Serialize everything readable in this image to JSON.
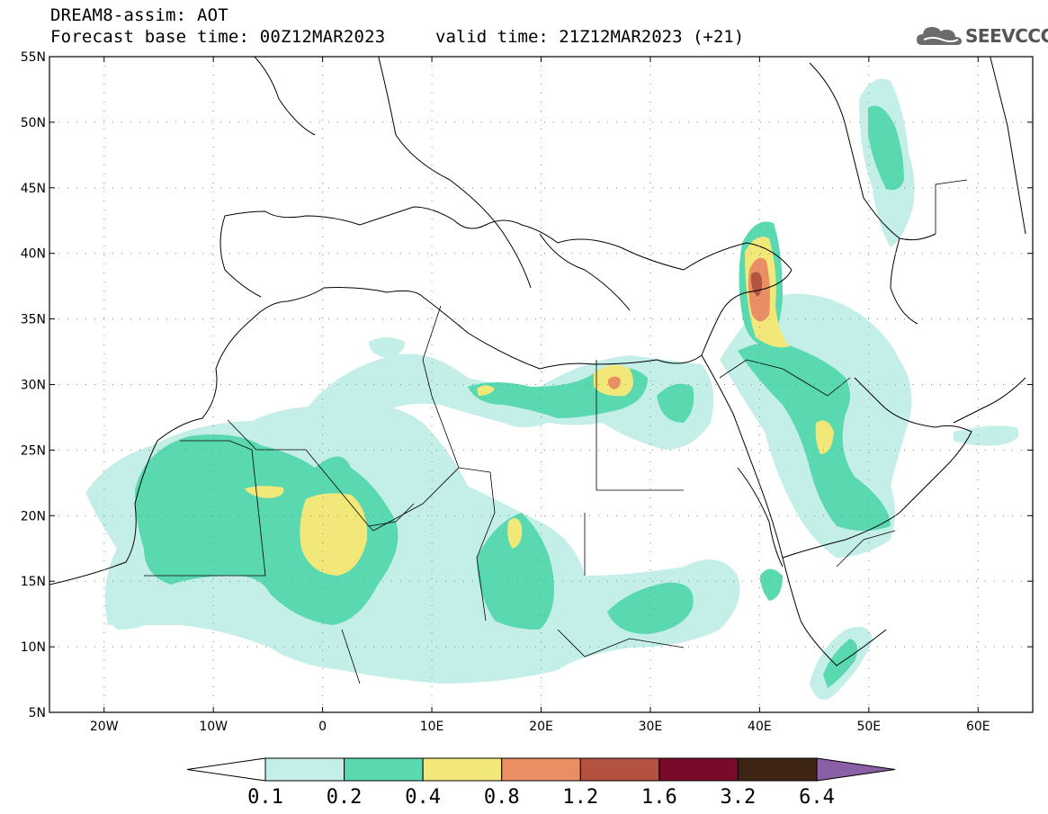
{
  "header": {
    "title": "DREAM8-assim: AOT",
    "base_time": "Forecast base time: 00Z12MAR2023",
    "valid_time": "valid time: 21Z12MAR2023 (+21)"
  },
  "logo": {
    "text": "SEEVCCC",
    "icon": "cloud-logo-icon"
  },
  "map": {
    "lon_range": [
      -25,
      65
    ],
    "lat_range": [
      5,
      55
    ],
    "lon_ticks": [
      {
        "v": -20,
        "label": "20W"
      },
      {
        "v": -10,
        "label": "10W"
      },
      {
        "v": 0,
        "label": "0"
      },
      {
        "v": 10,
        "label": "10E"
      },
      {
        "v": 20,
        "label": "20E"
      },
      {
        "v": 30,
        "label": "30E"
      },
      {
        "v": 40,
        "label": "40E"
      },
      {
        "v": 50,
        "label": "50E"
      },
      {
        "v": 60,
        "label": "60E"
      }
    ],
    "lat_ticks": [
      {
        "v": 55,
        "label": "55N"
      },
      {
        "v": 50,
        "label": "50N"
      },
      {
        "v": 45,
        "label": "45N"
      },
      {
        "v": 40,
        "label": "40N"
      },
      {
        "v": 35,
        "label": "35N"
      },
      {
        "v": 30,
        "label": "30N"
      },
      {
        "v": 25,
        "label": "25N"
      },
      {
        "v": 20,
        "label": "20N"
      },
      {
        "v": 15,
        "label": "15N"
      },
      {
        "v": 10,
        "label": "10N"
      },
      {
        "v": 5,
        "label": "5N"
      }
    ],
    "grid": true
  },
  "colorbar": {
    "colors": [
      "#ffffff",
      "#c4efe8",
      "#5ad8b0",
      "#f2e87a",
      "#ea8f63",
      "#b3523f",
      "#7a0a2a",
      "#3e2414",
      "#8a5fa6"
    ],
    "labels": [
      "0.1",
      "0.2",
      "0.4",
      "0.8",
      "1.2",
      "1.6",
      "3.2",
      "6.4"
    ]
  }
}
